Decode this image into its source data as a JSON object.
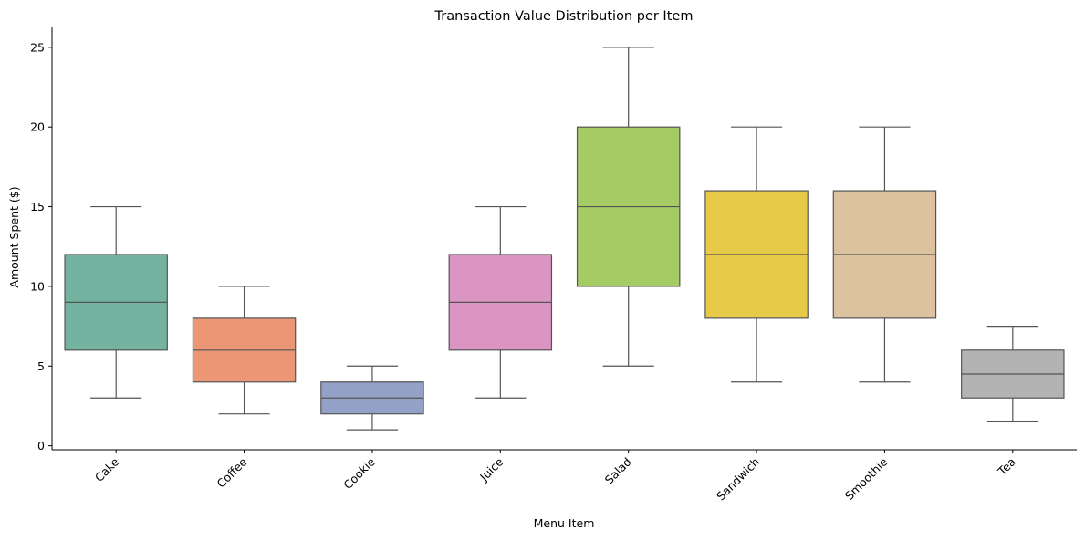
{
  "chart_data": {
    "type": "box",
    "title": "Transaction Value Distribution per Item",
    "xlabel": "Menu Item",
    "ylabel": "Amount Spent ($)",
    "ylim": [
      -0.25,
      26.25
    ],
    "yticks": [
      0,
      5,
      10,
      15,
      20,
      25
    ],
    "grid": false,
    "categories": [
      "Cake",
      "Coffee",
      "Cookie",
      "Juice",
      "Salad",
      "Sandwich",
      "Smoothie",
      "Tea"
    ],
    "boxes": [
      {
        "category": "Cake",
        "whisker_low": 3,
        "q1": 6,
        "median": 9,
        "q3": 12,
        "whisker_high": 15,
        "color": "#73b3a0"
      },
      {
        "category": "Coffee",
        "whisker_low": 2,
        "q1": 4,
        "median": 6,
        "q3": 8,
        "whisker_high": 10,
        "color": "#eb9674"
      },
      {
        "category": "Cookie",
        "whisker_low": 1,
        "q1": 2,
        "median": 3,
        "q3": 4,
        "whisker_high": 5,
        "color": "#93a1c7"
      },
      {
        "category": "Juice",
        "whisker_low": 3,
        "q1": 6,
        "median": 9,
        "q3": 12,
        "whisker_high": 15,
        "color": "#db95c2"
      },
      {
        "category": "Salad",
        "whisker_low": 5,
        "q1": 10,
        "median": 15,
        "q3": 20,
        "whisker_high": 25,
        "color": "#a4cb64"
      },
      {
        "category": "Sandwich",
        "whisker_low": 4,
        "q1": 8,
        "median": 12,
        "q3": 16,
        "whisker_high": 20,
        "color": "#e7ca48"
      },
      {
        "category": "Smoothie",
        "whisker_low": 4,
        "q1": 8,
        "median": 12,
        "q3": 16,
        "whisker_high": 20,
        "color": "#dcc29f"
      },
      {
        "category": "Tea",
        "whisker_low": 1.5,
        "q1": 3,
        "median": 4.5,
        "q3": 6,
        "whisker_high": 7.5,
        "color": "#b3b3b3"
      }
    ],
    "line_color": "#555555"
  }
}
